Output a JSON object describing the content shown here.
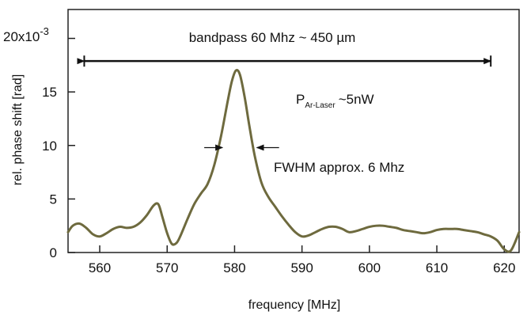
{
  "chart_data": {
    "type": "line",
    "xlabel": "frequency [MHz]",
    "ylabel": "rel. phase shift [rad]",
    "y_multiplier_label": "20x10",
    "y_multiplier_exp": "-3",
    "xlim": [
      555.3,
      622.2
    ],
    "ylim": [
      0,
      0.0227
    ],
    "x_ticks": [
      560,
      570,
      580,
      590,
      600,
      610,
      620
    ],
    "x_tick_labels": [
      "560",
      "570",
      "580",
      "590",
      "600",
      "610",
      "620"
    ],
    "y_ticks": [
      0,
      0.005,
      0.01,
      0.015,
      0.02
    ],
    "y_tick_labels": [
      "0",
      "5",
      "10",
      "15",
      ""
    ],
    "grid": false,
    "line_color": "#6e6a3e",
    "series": [
      {
        "x": [
          555.3,
          556.0,
          557.0,
          558.0,
          559.0,
          560.0,
          561.0,
          562.0,
          563.0,
          564.0,
          565.0,
          566.0,
          567.0,
          568.0,
          568.7,
          569.3,
          570.0,
          570.7,
          571.4,
          572.0,
          573.0,
          574.0,
          575.0,
          576.0,
          577.0,
          578.0,
          579.0,
          579.6,
          580.2,
          580.8,
          581.5,
          582.2,
          583.0,
          584.0,
          585.0,
          586.0,
          587.0,
          588.0,
          589.0,
          590.0,
          591.0,
          592.0,
          593.0,
          594.0,
          595.0,
          596.0,
          597.0,
          598.0,
          599.0,
          600.0,
          601.0,
          602.0,
          603.0,
          604.0,
          605.0,
          606.0,
          607.0,
          608.0,
          609.0,
          610.0,
          611.0,
          612.0,
          613.0,
          614.0,
          615.0,
          616.0,
          617.0,
          618.0,
          619.0,
          620.0,
          621.0,
          622.2
        ],
        "y": [
          0.0019,
          0.0025,
          0.0027,
          0.0023,
          0.0017,
          0.0015,
          0.0018,
          0.0022,
          0.0024,
          0.0023,
          0.0024,
          0.0028,
          0.0035,
          0.0044,
          0.0045,
          0.0033,
          0.0018,
          0.0008,
          0.0009,
          0.0016,
          0.0031,
          0.0045,
          0.0055,
          0.0064,
          0.0082,
          0.0109,
          0.0142,
          0.016,
          0.017,
          0.0166,
          0.0145,
          0.0118,
          0.009,
          0.0065,
          0.0052,
          0.0043,
          0.0034,
          0.0026,
          0.0019,
          0.0015,
          0.0016,
          0.0019,
          0.0022,
          0.0024,
          0.0024,
          0.0022,
          0.0019,
          0.002,
          0.0022,
          0.0024,
          0.0025,
          0.0025,
          0.0024,
          0.0023,
          0.0021,
          0.002,
          0.0019,
          0.0018,
          0.0019,
          0.0021,
          0.0022,
          0.0022,
          0.0022,
          0.0021,
          0.002,
          0.0019,
          0.0017,
          0.0015,
          0.0011,
          0.0003,
          0.0002,
          0.0019
        ]
      }
    ],
    "annotations": {
      "bandpass_text": "bandpass 60 Mhz ~ 450 µm",
      "bandpass_from": 557.7,
      "bandpass_to": 618.0,
      "bandpass_level": 0.01788,
      "power_main": "P",
      "power_sub": "Ar-Laser",
      "power_value": "~5nW",
      "fwhm_text": "FWHM approx. 6 Mhz",
      "fwhm_level": 0.0098,
      "fwhm_left_from": 575.5,
      "fwhm_left_to": 578.2,
      "fwhm_right_from": 586.6,
      "fwhm_right_to": 583.3
    }
  }
}
